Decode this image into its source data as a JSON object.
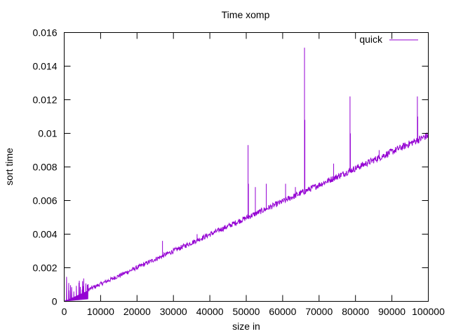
{
  "chart_data": {
    "type": "line",
    "title": "Time xomp",
    "xlabel": "size in",
    "ylabel": "sort time",
    "xlim": [
      0,
      100000
    ],
    "ylim": [
      0,
      0.016
    ],
    "xticks": [
      0,
      10000,
      20000,
      30000,
      40000,
      50000,
      60000,
      70000,
      80000,
      90000,
      100000
    ],
    "xtick_labels": [
      "0",
      "10000",
      "20000",
      "30000",
      "40000",
      "50000",
      "60000",
      "70000",
      "80000",
      "90000",
      "100000"
    ],
    "yticks": [
      0,
      0.002,
      0.004,
      0.006,
      0.008,
      0.01,
      0.012,
      0.014,
      0.016
    ],
    "ytick_labels": [
      "0",
      "0.002",
      "0.004",
      "0.006",
      "0.008",
      "0.01",
      "0.012",
      "0.014",
      "0.016"
    ],
    "grid": false,
    "legend_position": "top-right",
    "series": [
      {
        "name": "quick",
        "color": "#9400d3",
        "trend": {
          "slope_per_unit": 9.8e-08,
          "intercept": 0.0
        },
        "noise_region": {
          "x_start": 0,
          "x_end": 6500,
          "max_value": 0.0016
        },
        "spikes": [
          {
            "x": 27000,
            "y": 0.0036
          },
          {
            "x": 36500,
            "y": 0.004
          },
          {
            "x": 50500,
            "y": 0.0093
          },
          {
            "x": 50600,
            "y": 0.007
          },
          {
            "x": 52500,
            "y": 0.0068
          },
          {
            "x": 55500,
            "y": 0.007
          },
          {
            "x": 60800,
            "y": 0.007
          },
          {
            "x": 63500,
            "y": 0.0068
          },
          {
            "x": 66000,
            "y": 0.0151
          },
          {
            "x": 66100,
            "y": 0.0108
          },
          {
            "x": 74000,
            "y": 0.0082
          },
          {
            "x": 78500,
            "y": 0.0122
          },
          {
            "x": 78600,
            "y": 0.01
          },
          {
            "x": 86500,
            "y": 0.009
          },
          {
            "x": 97000,
            "y": 0.0122
          },
          {
            "x": 97100,
            "y": 0.011
          },
          {
            "x": 99500,
            "y": 0.01
          }
        ]
      }
    ]
  }
}
